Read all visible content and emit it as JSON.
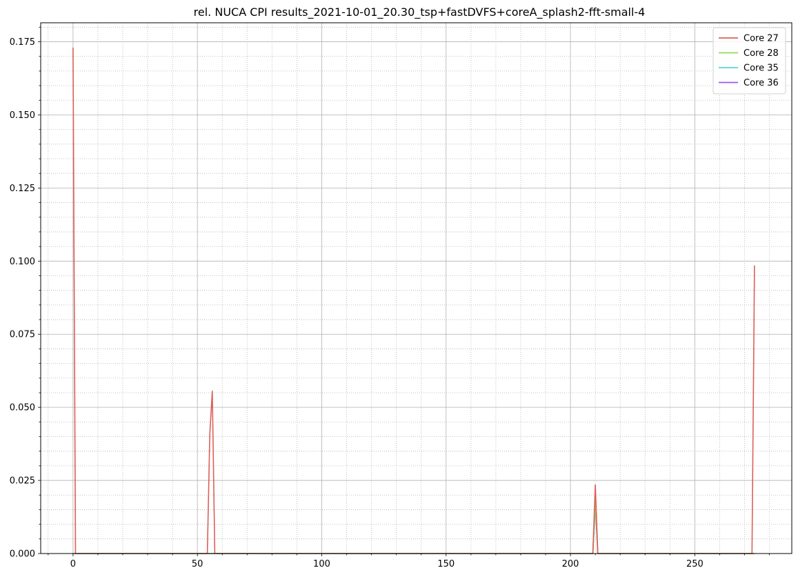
{
  "chart_data": {
    "type": "line",
    "title": "rel. NUCA CPI results_2021-10-01_20.30_tsp+fastDVFS+coreA_splash2-fft-small-4",
    "xlabel": "",
    "ylabel": "",
    "xlim": [
      -13,
      289
    ],
    "ylim": [
      0,
      0.1815
    ],
    "x_ticks": [
      0,
      50,
      100,
      150,
      200,
      250
    ],
    "x_tick_labels": [
      "0",
      "50",
      "100",
      "150",
      "200",
      "250"
    ],
    "y_ticks": [
      0,
      0.025,
      0.05,
      0.075,
      0.1,
      0.125,
      0.15,
      0.175
    ],
    "y_tick_labels": [
      "0.000",
      "0.025",
      "0.050",
      "0.075",
      "0.100",
      "0.125",
      "0.150",
      "0.175"
    ],
    "grid": {
      "major": true,
      "minor": true
    },
    "legend_position": "top-right",
    "series": [
      {
        "name": "Core 27",
        "color": "#db5f57",
        "x": [
          0,
          1,
          2,
          53,
          54,
          55,
          56,
          57,
          58,
          208,
          209,
          210,
          211,
          212,
          272,
          273,
          274
        ],
        "values": [
          0.173,
          0,
          0,
          0,
          0,
          0.041,
          0.0555,
          0,
          0,
          0,
          0,
          0.0235,
          0,
          0,
          0,
          0,
          0.0985
        ]
      },
      {
        "name": "Core 28",
        "color": "#91db57",
        "x": [
          0,
          208,
          209,
          210,
          211,
          212,
          274
        ],
        "values": [
          0,
          0,
          0,
          0.018,
          0,
          0,
          0
        ]
      },
      {
        "name": "Core 35",
        "color": "#57d3db",
        "x": [
          0,
          208,
          209,
          210,
          211,
          212,
          274
        ],
        "values": [
          0,
          0,
          0,
          0.0175,
          0,
          0,
          0
        ]
      },
      {
        "name": "Core 36",
        "color": "#a157db",
        "x": [
          0,
          208,
          209,
          210,
          211,
          212,
          274
        ],
        "values": [
          0,
          0,
          0,
          0.0165,
          0,
          0,
          0
        ]
      }
    ]
  }
}
